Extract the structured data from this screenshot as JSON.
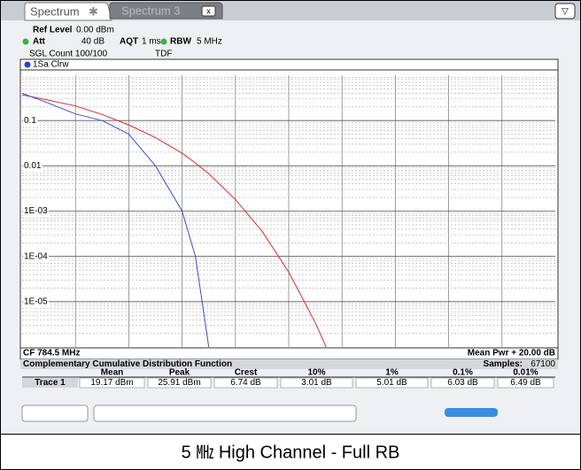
{
  "tabs": [
    "Spectrum",
    "Spectrum 3"
  ],
  "settings": {
    "ref_level_label": "Ref Level",
    "ref_level": "0.00 dBm",
    "att_label": "Att",
    "att": "40 dB",
    "aqt_label": "AQT",
    "aqt": "1 ms",
    "rbw_label": "RBW",
    "rbw": "5 MHz",
    "count": "SGL Count 100/100",
    "tdf": "TDF"
  },
  "trace_label": "1Sa Clrw",
  "chart_data": {
    "type": "line",
    "log_y": true,
    "grid": true,
    "x": [
      0,
      1,
      2,
      3,
      4,
      5,
      6,
      6.5,
      7,
      8,
      9,
      10,
      11,
      11.5
    ],
    "series": [
      {
        "color": "#e0282e",
        "values": [
          0.37,
          0.28,
          0.21,
          0.136,
          0.08,
          0.042,
          0.019,
          0.0115,
          0.0067,
          0.0018,
          0.00036,
          4.5e-05,
          3.4e-06,
          7.4e-07
        ]
      },
      {
        "color": "#3a4fd6",
        "values": [
          0.4,
          0.24,
          0.14,
          0.1,
          0.05,
          0.01,
          0.001,
          0.0001,
          1e-06,
          null,
          null,
          null,
          null,
          null
        ]
      }
    ],
    "xlim": [
      0,
      20
    ],
    "ylim": [
      1e-06,
      1
    ],
    "yticks": [
      0.1,
      0.01,
      {
        "value": 0.001,
        "label": "1E-03"
      },
      {
        "value": 0.0001,
        "label": "1E-04"
      },
      {
        "value": 1e-05,
        "label": "1E-05"
      }
    ],
    "x_start_label": "CF 784.5 MHz",
    "x_end_label": "Mean Pwr + 20.00 dB"
  },
  "table": {
    "title": "Complementary Cumulative Distribution Function",
    "samples_label": "Samples:",
    "samples": "67100",
    "header": [
      "Mean",
      "Peak",
      "Crest",
      "10%",
      "1%",
      "0.1%",
      "0.01%"
    ],
    "rows": [
      [
        "Trace 1",
        "19.17 dBm",
        "25.91 dBm",
        "6.74 dB",
        "3.01 dB",
        "5.01 dB",
        "6.03 dB",
        "6.49 dB"
      ]
    ]
  },
  "caption": "5 ㎒ High Channel - Full RB"
}
